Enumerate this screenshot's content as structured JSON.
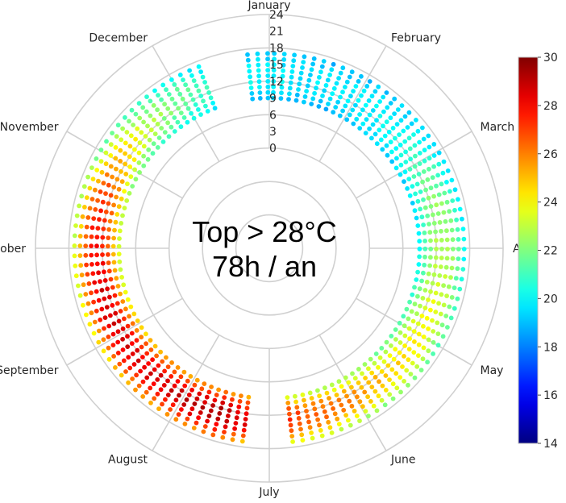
{
  "annotation": {
    "line1": "Top > 28°C",
    "line2": "78h / an"
  },
  "chart_data": {
    "type": "scatter",
    "projection": "polar",
    "direction": "clockwise",
    "theta_start": "January at top",
    "angular_labels": [
      "January",
      "February",
      "March",
      "April",
      "May",
      "June",
      "July",
      "August",
      "September",
      "October",
      "November",
      "December"
    ],
    "radial_ticks": [
      0,
      3,
      6,
      9,
      12,
      15,
      18,
      21,
      24
    ],
    "radial_range": [
      -18,
      24
    ],
    "radial_quantity": "hour of day",
    "angular_quantity": "day of year",
    "grid": true,
    "points_per_day_cluster": "hourly points for selected hours of each day",
    "colorbar": {
      "position": "right",
      "min": 14,
      "max": 30,
      "ticks": [
        14,
        16,
        18,
        20,
        22,
        24,
        26,
        28,
        30
      ],
      "colormap": "jet"
    },
    "hour_range_shown": [
      9,
      17
    ],
    "monthly_temperature_profile": [
      {
        "month": "January",
        "low": 18.8,
        "high": 19.6
      },
      {
        "month": "February",
        "low": 19.2,
        "high": 20.0
      },
      {
        "month": "March",
        "low": 19.0,
        "high": 22.4
      },
      {
        "month": "April",
        "low": 20.4,
        "high": 23.4
      },
      {
        "month": "May",
        "low": 21.5,
        "high": 24.8
      },
      {
        "month": "June",
        "low": 22.5,
        "high": 26.8
      },
      {
        "month": "July",
        "low": 25.5,
        "high": 29.2
      },
      {
        "month": "August",
        "low": 24.5,
        "high": 28.5
      },
      {
        "month": "September",
        "low": 22.5,
        "high": 28.6
      },
      {
        "month": "October",
        "low": 22.0,
        "high": 27.2
      },
      {
        "month": "November",
        "low": 20.5,
        "high": 22.8
      },
      {
        "month": "December",
        "low": 19.0,
        "high": 20.2
      }
    ],
    "data_gaps_day_of_year": [
      [
        345,
        355
      ],
      [
        175,
        187
      ]
    ],
    "colors": {
      "grid": "#d0d0d0",
      "text": "#262626",
      "background": "#ffffff"
    }
  }
}
